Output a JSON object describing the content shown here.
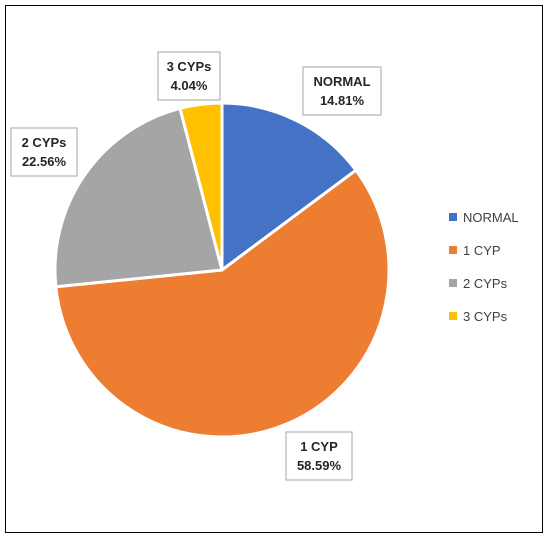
{
  "chart_data": {
    "type": "pie",
    "title": "",
    "categories": [
      "NORMAL",
      "1 CYP",
      "2 CYPs",
      "3 CYPs"
    ],
    "values": [
      14.81,
      58.59,
      22.56,
      4.04
    ],
    "value_labels": [
      "14.81%",
      "58.59%",
      "22.56%",
      "4.04%"
    ],
    "colors": [
      "#4472c4",
      "#ed7d31",
      "#a5a5a5",
      "#ffc000"
    ],
    "legend": {
      "position": "right",
      "entries": [
        "NORMAL",
        "1 CYP",
        "2 CYPs",
        "3 CYPs"
      ]
    },
    "start_angle_deg": 0,
    "direction": "clockwise",
    "data_label_style": "callout"
  }
}
